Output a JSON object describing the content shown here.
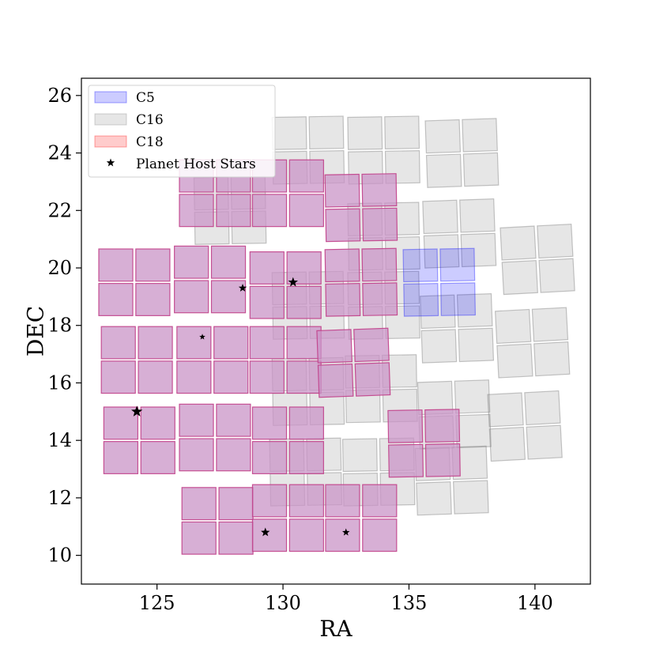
{
  "chart_data": {
    "type": "scatter",
    "title": "",
    "xlabel": "RA",
    "ylabel": "DEC",
    "xlim": [
      122,
      142.2
    ],
    "ylim": [
      9,
      26.6
    ],
    "xticks": [
      125,
      130,
      135,
      140
    ],
    "yticks": [
      10,
      12,
      14,
      16,
      18,
      20,
      22,
      24,
      26
    ],
    "grid": false,
    "legend_position": "top-left",
    "colors": {
      "C5": "#0000ff",
      "C16": "#808080",
      "C18": "#ff0000",
      "C18_edge": "#c1408a",
      "overlap": "#c994c7",
      "stars": "#000000"
    },
    "legend": [
      {
        "label": "C5",
        "kind": "patch",
        "color": "#0000ff"
      },
      {
        "label": "C16",
        "kind": "patch",
        "color": "#808080"
      },
      {
        "label": "C18",
        "kind": "patch",
        "color": "#ff0000"
      },
      {
        "label": "Planet Host Stars",
        "kind": "marker",
        "color": "#000000"
      }
    ],
    "series": [
      {
        "name": "C16",
        "kind": "modules",
        "modules": [
          {
            "ra": 131.0,
            "dec": 24.1,
            "tilt": -1
          },
          {
            "ra": 134.0,
            "dec": 24.1,
            "tilt": -1
          },
          {
            "ra": 137.1,
            "dec": 24.0,
            "tilt": -2
          },
          {
            "ra": 127.9,
            "dec": 22.0,
            "tilt": -1
          },
          {
            "ra": 134.0,
            "dec": 21.1,
            "tilt": -1
          },
          {
            "ra": 137.0,
            "dec": 21.2,
            "tilt": -2
          },
          {
            "ra": 140.1,
            "dec": 20.3,
            "tilt": -3
          },
          {
            "ra": 131.0,
            "dec": 18.7,
            "tilt": -1
          },
          {
            "ra": 134.0,
            "dec": 18.7,
            "tilt": -1
          },
          {
            "ra": 136.9,
            "dec": 17.9,
            "tilt": -2
          },
          {
            "ra": 139.9,
            "dec": 17.4,
            "tilt": -3
          },
          {
            "ra": 131.0,
            "dec": 15.7,
            "tilt": -1
          },
          {
            "ra": 133.9,
            "dec": 15.8,
            "tilt": -1
          },
          {
            "ra": 136.8,
            "dec": 14.9,
            "tilt": -2
          },
          {
            "ra": 139.6,
            "dec": 14.5,
            "tilt": -3
          },
          {
            "ra": 130.9,
            "dec": 12.9,
            "tilt": -1
          },
          {
            "ra": 133.8,
            "dec": 12.9,
            "tilt": -1
          },
          {
            "ra": 136.7,
            "dec": 12.6,
            "tilt": -2
          }
        ]
      },
      {
        "name": "C5",
        "kind": "modules",
        "modules": [
          {
            "ra": 136.2,
            "dec": 19.5,
            "tilt": -1
          }
        ]
      },
      {
        "name": "C18",
        "kind": "modules",
        "modules": [
          {
            "ra": 127.3,
            "dec": 22.6,
            "tilt": 0
          },
          {
            "ra": 130.2,
            "dec": 22.6,
            "tilt": 0
          },
          {
            "ra": 133.1,
            "dec": 22.1,
            "tilt": -1
          },
          {
            "ra": 124.1,
            "dec": 19.5,
            "tilt": 0
          },
          {
            "ra": 127.1,
            "dec": 19.6,
            "tilt": 0
          },
          {
            "ra": 130.1,
            "dec": 19.4,
            "tilt": 0
          },
          {
            "ra": 133.1,
            "dec": 19.5,
            "tilt": -1
          },
          {
            "ra": 124.2,
            "dec": 16.8,
            "tilt": 0
          },
          {
            "ra": 127.2,
            "dec": 16.8,
            "tilt": 0
          },
          {
            "ra": 130.1,
            "dec": 16.8,
            "tilt": 0
          },
          {
            "ra": 132.8,
            "dec": 16.7,
            "tilt": -2
          },
          {
            "ra": 124.3,
            "dec": 14.0,
            "tilt": 0
          },
          {
            "ra": 127.3,
            "dec": 14.1,
            "tilt": 0
          },
          {
            "ra": 130.2,
            "dec": 14.0,
            "tilt": 0
          },
          {
            "ra": 135.6,
            "dec": 13.9,
            "tilt": -1
          },
          {
            "ra": 127.4,
            "dec": 11.2,
            "tilt": 0
          },
          {
            "ra": 130.2,
            "dec": 11.3,
            "tilt": 0
          },
          {
            "ra": 133.1,
            "dec": 11.3,
            "tilt": 0
          }
        ]
      },
      {
        "name": "Planet Host Stars",
        "kind": "points",
        "points": [
          {
            "ra": 128.4,
            "dec": 19.3,
            "size": 8
          },
          {
            "ra": 130.4,
            "dec": 19.5,
            "size": 10
          },
          {
            "ra": 126.8,
            "dec": 17.6,
            "size": 5
          },
          {
            "ra": 124.2,
            "dec": 15.0,
            "size": 12
          },
          {
            "ra": 129.3,
            "dec": 10.8,
            "size": 9
          },
          {
            "ra": 132.5,
            "dec": 10.8,
            "size": 7
          }
        ]
      }
    ]
  }
}
